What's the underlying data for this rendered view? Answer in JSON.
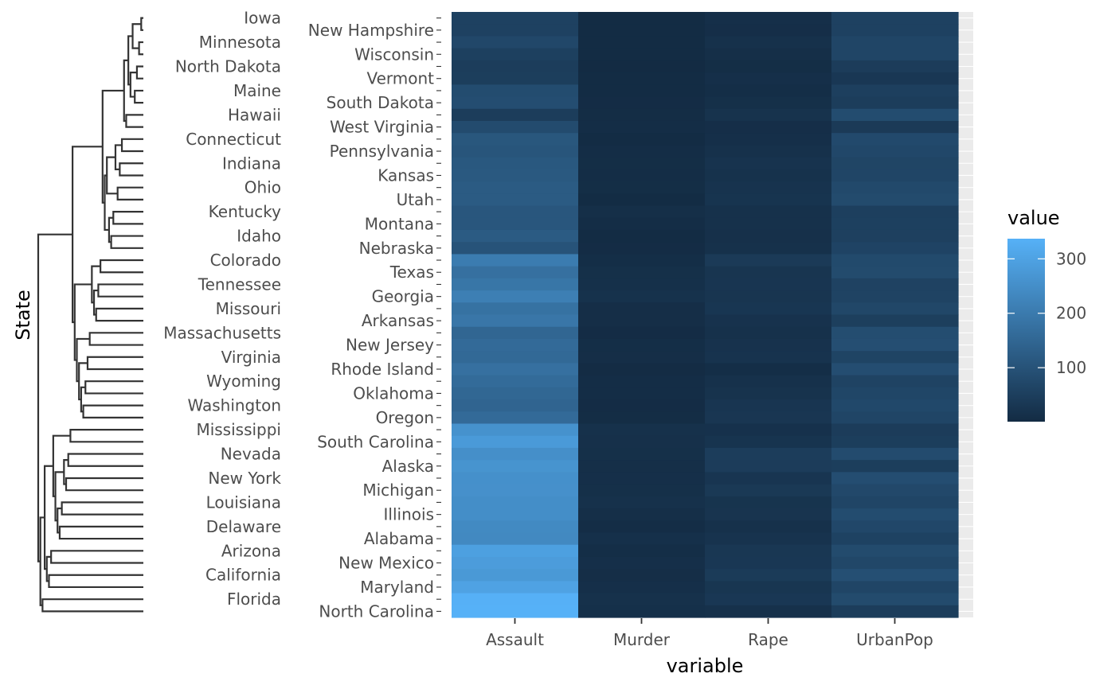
{
  "chart_data": {
    "type": "heatmap",
    "title": "",
    "xlabel": "variable",
    "ylabel": "State",
    "x_categories": [
      "Assault",
      "Murder",
      "Rape",
      "UrbanPop"
    ],
    "states": [
      "Iowa",
      "New Hampshire",
      "Minnesota",
      "Wisconsin",
      "North Dakota",
      "Vermont",
      "Maine",
      "South Dakota",
      "Hawaii",
      "West Virginia",
      "Connecticut",
      "Pennsylvania",
      "Indiana",
      "Kansas",
      "Ohio",
      "Utah",
      "Kentucky",
      "Montana",
      "Idaho",
      "Nebraska",
      "Colorado",
      "Texas",
      "Tennessee",
      "Georgia",
      "Missouri",
      "Arkansas",
      "Massachusetts",
      "New Jersey",
      "Virginia",
      "Rhode Island",
      "Wyoming",
      "Oklahoma",
      "Washington",
      "Oregon",
      "Mississippi",
      "South Carolina",
      "Nevada",
      "Alaska",
      "New York",
      "Michigan",
      "Louisiana",
      "Illinois",
      "Delaware",
      "Alabama",
      "Arizona",
      "New Mexico",
      "California",
      "Maryland",
      "Florida",
      "North Carolina"
    ],
    "left_labels": [
      "Iowa",
      "Minnesota",
      "North Dakota",
      "Maine",
      "Hawaii",
      "Connecticut",
      "Indiana",
      "Ohio",
      "Kentucky",
      "Idaho",
      "Colorado",
      "Tennessee",
      "Missouri",
      "Massachusetts",
      "Virginia",
      "Wyoming",
      "Washington",
      "Mississippi",
      "Nevada",
      "New York",
      "Louisiana",
      "Delaware",
      "Arizona",
      "California",
      "Florida"
    ],
    "right_labels": [
      "New Hampshire",
      "Wisconsin",
      "Vermont",
      "South Dakota",
      "West Virginia",
      "Pennsylvania",
      "Kansas",
      "Utah",
      "Montana",
      "Nebraska",
      "Texas",
      "Georgia",
      "Arkansas",
      "New Jersey",
      "Rhode Island",
      "Oklahoma",
      "Oregon",
      "South Carolina",
      "Alaska",
      "Michigan",
      "Illinois",
      "Alabama",
      "New Mexico",
      "Maryland",
      "North Carolina"
    ],
    "values": {
      "Assault": [
        56,
        57,
        72,
        53,
        45,
        48,
        83,
        86,
        46,
        81,
        110,
        106,
        113,
        115,
        120,
        120,
        109,
        109,
        120,
        102,
        204,
        174,
        188,
        211,
        178,
        190,
        149,
        159,
        156,
        174,
        161,
        151,
        145,
        159,
        259,
        279,
        252,
        263,
        254,
        255,
        249,
        249,
        238,
        236,
        294,
        285,
        276,
        300,
        335,
        337
      ],
      "Murder": [
        2.2,
        2.1,
        2.7,
        2.6,
        0.8,
        2.2,
        2.1,
        3.8,
        5.3,
        5.7,
        3.3,
        6.3,
        7.2,
        6.0,
        7.3,
        3.2,
        9.7,
        6.0,
        2.6,
        4.3,
        7.9,
        12.7,
        13.2,
        17.4,
        9.0,
        8.8,
        4.4,
        7.4,
        8.5,
        3.4,
        6.8,
        6.6,
        4.0,
        4.9,
        16.1,
        14.4,
        12.2,
        10.0,
        11.1,
        12.1,
        15.4,
        10.4,
        5.9,
        13.2,
        8.1,
        11.4,
        9.0,
        11.3,
        15.4,
        13.0
      ],
      "Rape": [
        11.3,
        9.5,
        14.9,
        10.8,
        7.3,
        11.2,
        7.8,
        12.8,
        20.2,
        9.3,
        11.1,
        14.9,
        21.0,
        18.0,
        21.4,
        22.9,
        16.3,
        16.4,
        14.2,
        16.5,
        38.7,
        25.5,
        26.9,
        25.8,
        28.2,
        19.5,
        16.3,
        18.8,
        20.7,
        8.3,
        15.6,
        20.0,
        26.2,
        29.3,
        17.1,
        22.5,
        46.0,
        44.5,
        26.1,
        35.1,
        22.2,
        24.0,
        15.8,
        21.2,
        31.0,
        32.1,
        40.6,
        27.8,
        31.9,
        16.1
      ],
      "UrbanPop": [
        57,
        56,
        66,
        66,
        44,
        32,
        51,
        45,
        83,
        39,
        77,
        72,
        65,
        66,
        75,
        80,
        52,
        53,
        54,
        62,
        78,
        80,
        59,
        60,
        70,
        50,
        85,
        89,
        63,
        87,
        60,
        68,
        73,
        67,
        44,
        48,
        81,
        48,
        86,
        74,
        66,
        83,
        72,
        58,
        80,
        70,
        91,
        67,
        80,
        45
      ]
    },
    "color_scale": {
      "low": "#132B43",
      "high": "#56B1F7",
      "min": 0.8,
      "max": 337
    },
    "legend": {
      "title": "value",
      "ticks": [
        100,
        200,
        300
      ],
      "position": "right"
    },
    "dendrogram_position": "left",
    "dendrogram_links": [
      [
        "Iowa",
        "New Hampshire"
      ],
      [
        "Minnesota",
        "Wisconsin"
      ],
      [
        "North Dakota",
        "Vermont"
      ],
      [
        "Maine",
        "South Dakota"
      ],
      [
        "Iowa",
        "Minnesota"
      ],
      [
        "North Dakota",
        "Maine"
      ],
      [
        "Iowa",
        "North Dakota"
      ],
      [
        "Hawaii",
        "West Virginia"
      ],
      [
        "Iowa",
        "Hawaii"
      ],
      [
        "Connecticut",
        "Pennsylvania"
      ],
      [
        "Indiana",
        "Kansas"
      ],
      [
        "Ohio",
        "Utah"
      ],
      [
        "Connecticut",
        "Indiana"
      ],
      [
        "Kentucky",
        "Montana"
      ],
      [
        "Idaho",
        "Nebraska"
      ],
      [
        "Kentucky",
        "Idaho"
      ],
      [
        "Connecticut",
        "Ohio"
      ],
      [
        "Connecticut",
        "Kentucky"
      ],
      [
        "Iowa",
        "Connecticut"
      ],
      [
        "Colorado",
        "Texas"
      ],
      [
        "Tennessee",
        "Georgia"
      ],
      [
        "Missouri",
        "Arkansas"
      ],
      [
        "Tennessee",
        "Missouri"
      ],
      [
        "Colorado",
        "Tennessee"
      ],
      [
        "Massachusetts",
        "New Jersey"
      ],
      [
        "Virginia",
        "Rhode Island"
      ],
      [
        "Wyoming",
        "Oklahoma"
      ],
      [
        "Washington",
        "Oregon"
      ],
      [
        "Wyoming",
        "Washington"
      ],
      [
        "Virginia",
        "Wyoming"
      ],
      [
        "Massachusetts",
        "Virginia"
      ],
      [
        "Colorado",
        "Massachusetts"
      ],
      [
        "Iowa",
        "Colorado"
      ],
      [
        "Mississippi",
        "South Carolina"
      ],
      [
        "Nevada",
        "Alaska"
      ],
      [
        "New York",
        "Michigan"
      ],
      [
        "Nevada",
        "New York"
      ],
      [
        "Louisiana",
        "Illinois"
      ],
      [
        "Delaware",
        "Alabama"
      ],
      [
        "Louisiana",
        "Delaware"
      ],
      [
        "Nevada",
        "Louisiana"
      ],
      [
        "Mississippi",
        "Nevada"
      ],
      [
        "Arizona",
        "New Mexico"
      ],
      [
        "California",
        "Maryland"
      ],
      [
        "Arizona",
        "California"
      ],
      [
        "Mississippi",
        "Arizona"
      ],
      [
        "Florida",
        "North Carolina"
      ],
      [
        "Mississippi",
        "Florida"
      ],
      [
        "Iowa",
        "Mississippi"
      ]
    ]
  }
}
